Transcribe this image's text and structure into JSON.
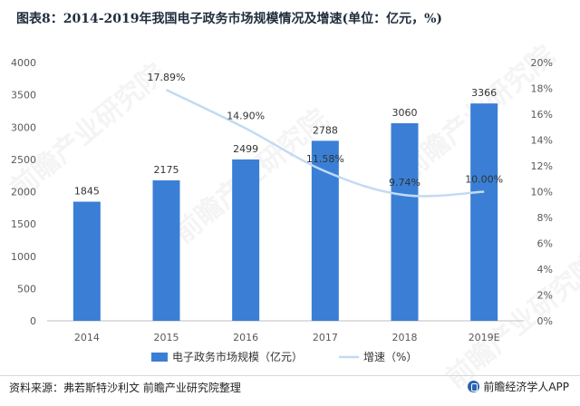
{
  "title": "图表8：2014-2019年我国电子政务市场规模情况及增速(单位：亿元，%)",
  "footer": {
    "source": "资料来源：弗若斯特沙利文 前瞻产业研究院整理",
    "brand": "前瞻经济学人APP"
  },
  "watermark": "前瞻产业研究院",
  "chart_data": {
    "type": "bar",
    "categories": [
      "2014",
      "2015",
      "2016",
      "2017",
      "2018",
      "2019E"
    ],
    "series": [
      {
        "name": "电子政务市场规模（亿元）",
        "kind": "bar",
        "axis": "left",
        "values": [
          1845,
          2175,
          2499,
          2788,
          3060,
          3366
        ],
        "labels": [
          "1845",
          "2175",
          "2499",
          "2788",
          "3060",
          "3366"
        ],
        "color": "#3a7fd5"
      },
      {
        "name": "增速（%）",
        "kind": "line",
        "axis": "right",
        "values": [
          null,
          17.89,
          14.9,
          11.58,
          9.74,
          10.0
        ],
        "labels": [
          "",
          "17.89%",
          "14.90%",
          "11.58%",
          "9.74%",
          "10.00%"
        ],
        "color": "#c2daf4"
      }
    ],
    "y_left": {
      "ylim": [
        0,
        4000
      ],
      "ticks": [
        "0",
        "500",
        "1000",
        "1500",
        "2000",
        "2500",
        "3000",
        "3500",
        "4000"
      ]
    },
    "y_right": {
      "ylim": [
        0,
        20
      ],
      "ticks": [
        "0%",
        "2%",
        "4%",
        "6%",
        "8%",
        "10%",
        "12%",
        "14%",
        "16%",
        "18%",
        "20%"
      ]
    },
    "grid": false,
    "legend_position": "bottom"
  }
}
